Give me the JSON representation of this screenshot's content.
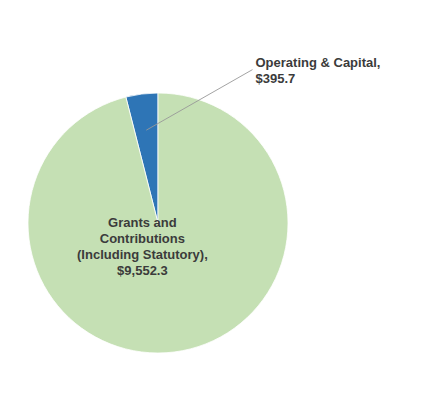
{
  "chart_data": {
    "type": "pie",
    "categories": [
      "Operating & Capital,\n$395.7",
      "Grants and\nContributions\n(Including Statutory),\n$9,552.3"
    ],
    "values": [
      395.7,
      9552.3
    ],
    "colors": [
      "#2e75b6",
      "#c5e0b4"
    ]
  }
}
